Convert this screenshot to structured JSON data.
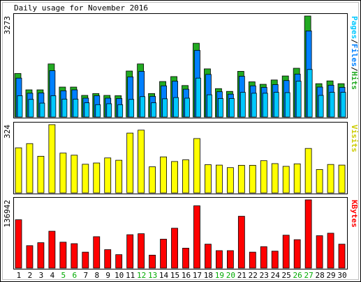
{
  "chart_data": {
    "type": "bar",
    "title": "Daily usage for November 2016",
    "categories": [
      "1",
      "2",
      "3",
      "4",
      "5",
      "6",
      "7",
      "8",
      "9",
      "10",
      "11",
      "12",
      "13",
      "14",
      "15",
      "16",
      "17",
      "18",
      "19",
      "20",
      "21",
      "22",
      "23",
      "24",
      "25",
      "26",
      "27",
      "28",
      "29",
      "30"
    ],
    "weekend_days": [
      "5",
      "6",
      "12",
      "13",
      "19",
      "20",
      "26",
      "27"
    ],
    "colors": {
      "hits": "#22aa22",
      "files": "#0080ff",
      "pages": "#00c8ff",
      "visits": "#ffff00",
      "kbytes": "#ff0000",
      "weekday_label": "#000000",
      "weekend_label": "#00aa00",
      "axis_title_visits": "#cccc00"
    },
    "panels": [
      {
        "id": "hits",
        "ylabel": "Pages/Files/Hits",
        "ymax_label": "3273",
        "ylim": [
          0,
          3273
        ],
        "series": [
          {
            "name": "Hits",
            "values": [
              1410,
              880,
              880,
              1720,
              970,
              970,
              700,
              760,
              700,
              690,
              1490,
              1720,
              760,
              1150,
              1310,
              1020,
              2390,
              1560,
              920,
              830,
              1480,
              1140,
              1060,
              1200,
              1330,
              1580,
              3273,
              1080,
              1170,
              1080
            ]
          },
          {
            "name": "Files",
            "values": [
              1260,
              770,
              780,
              1500,
              850,
              880,
              610,
              690,
              610,
              600,
              1300,
              1480,
              670,
              1010,
              1160,
              900,
              2160,
              1380,
              820,
              740,
              1320,
              1010,
              960,
              1050,
              1180,
              1390,
              2790,
              970,
              1030,
              960
            ]
          },
          {
            "name": "Pages",
            "values": [
              690,
              570,
              450,
              690,
              580,
              580,
              460,
              400,
              430,
              400,
              570,
              660,
              460,
              590,
              630,
              610,
              1260,
              720,
              600,
              600,
              800,
              770,
              770,
              800,
              790,
              1160,
              1540,
              700,
              800,
              800
            ]
          }
        ]
      },
      {
        "id": "visits",
        "ylabel": "Visits",
        "ymax_label": "324",
        "ylim": [
          0,
          324
        ],
        "series": [
          {
            "name": "Visits",
            "values": [
              214,
              234,
              174,
              324,
              189,
              179,
              136,
              142,
              166,
              155,
              284,
              298,
              124,
              171,
              149,
              157,
              258,
              134,
              132,
              120,
              131,
              131,
              153,
              139,
              126,
              138,
              211,
              111,
              135,
              132
            ]
          }
        ]
      },
      {
        "id": "kbytes",
        "ylabel": "KBytes",
        "ymax_label": "136942",
        "ylim": [
          0,
          136942
        ],
        "series": [
          {
            "name": "KBytes",
            "values": [
              97000,
              45000,
              51000,
              74000,
              52000,
              49000,
              32000,
              63000,
              37000,
              27000,
              67000,
              69000,
              26000,
              58000,
              80000,
              40000,
              125000,
              48000,
              35000,
              35000,
              104000,
              32000,
              43000,
              34000,
              66000,
              57000,
              136942,
              65000,
              70000,
              48000
            ]
          }
        ]
      }
    ]
  }
}
